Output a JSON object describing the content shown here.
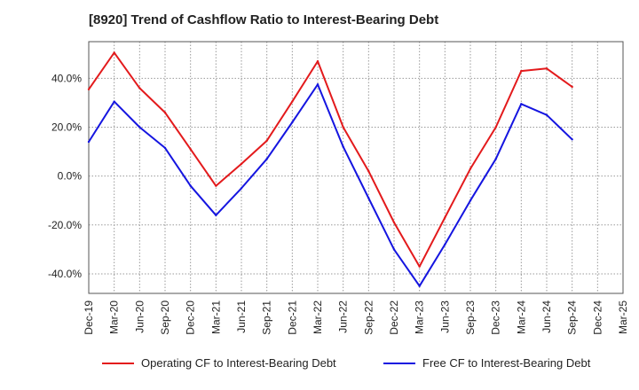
{
  "chart_title": "[8920]  Trend of Cashflow Ratio to Interest-Bearing Debt",
  "chart_data": {
    "type": "line",
    "title": "[8920]  Trend of Cashflow Ratio to Interest-Bearing Debt",
    "xlabel": "",
    "ylabel": "",
    "categories": [
      "Dec-19",
      "Mar-20",
      "Jun-20",
      "Sep-20",
      "Dec-20",
      "Mar-21",
      "Jun-21",
      "Sep-21",
      "Dec-21",
      "Mar-22",
      "Jun-22",
      "Sep-22",
      "Dec-22",
      "Mar-23",
      "Jun-23",
      "Sep-23",
      "Dec-23",
      "Mar-24",
      "Jun-24",
      "Sep-24",
      "Dec-24",
      "Mar-25"
    ],
    "ylim": [
      -48,
      55
    ],
    "yticks": [
      -40,
      -20,
      0,
      20,
      40
    ],
    "ytick_labels": [
      "-40.0%",
      "-20.0%",
      "0.0%",
      "20.0%",
      "40.0%"
    ],
    "grid": true,
    "legend_position": "bottom",
    "series": [
      {
        "name": "Operating CF to Interest-Bearing Debt",
        "color": "#e31a1c",
        "values": [
          35.5,
          50.5,
          36,
          26,
          11,
          -4,
          5,
          14.5,
          30.5,
          47,
          20,
          2,
          -19,
          -37,
          -17,
          3,
          20,
          43,
          44,
          36.5,
          null,
          null
        ]
      },
      {
        "name": "Free CF to Interest-Bearing Debt",
        "color": "#1515e0",
        "values": [
          14,
          30.5,
          20,
          11.5,
          -4,
          -16,
          -5,
          7,
          22,
          37.5,
          12,
          -9,
          -30,
          -45,
          -28,
          -10,
          7,
          29.5,
          25,
          15,
          null,
          null
        ]
      }
    ]
  }
}
